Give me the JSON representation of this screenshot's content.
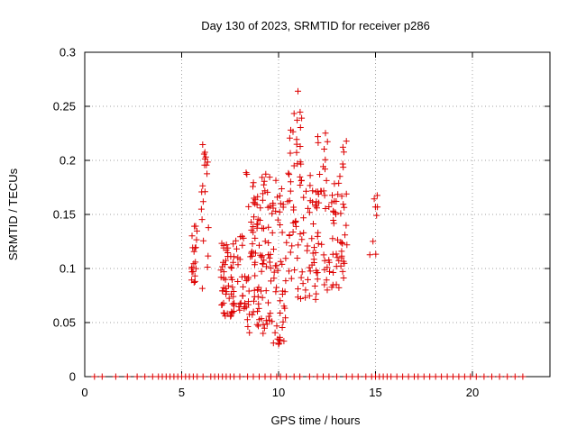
{
  "chart_data": {
    "type": "scatter",
    "title": "Day 130 of 2023, SRMTID for receiver p286",
    "xlabel": "GPS time / hours",
    "ylabel": "SRMTID / TECUs",
    "xlim": [
      0,
      24
    ],
    "ylim": [
      0,
      0.3
    ],
    "xticks": [
      0,
      5,
      10,
      15,
      20
    ],
    "yticks": [
      0,
      0.05,
      0.1,
      0.15,
      0.2,
      0.25,
      0.3
    ],
    "xtick_labels": [
      "0",
      "5",
      "10",
      "15",
      "20"
    ],
    "ytick_labels": [
      "0",
      "0.05",
      "0.1",
      "0.15",
      "0.2",
      "0.25",
      "0.3"
    ],
    "grid": true,
    "marker": "+",
    "color": "#dd0000",
    "clusters": [
      {
        "x": [
          5.5,
          5.8
        ],
        "y": [
          0.08,
          0.14
        ],
        "n": 20
      },
      {
        "x": [
          6.0,
          6.4
        ],
        "y": [
          0.07,
          0.215
        ],
        "n": 20
      },
      {
        "x": [
          7.0,
          7.6
        ],
        "y": [
          0.055,
          0.125
        ],
        "n": 40
      },
      {
        "x": [
          7.6,
          8.3
        ],
        "y": [
          0.05,
          0.13
        ],
        "n": 35
      },
      {
        "x": [
          8.3,
          8.9
        ],
        "y": [
          0.04,
          0.19
        ],
        "n": 45
      },
      {
        "x": [
          8.9,
          9.6
        ],
        "y": [
          0.04,
          0.19
        ],
        "n": 55
      },
      {
        "x": [
          9.6,
          10.4
        ],
        "y": [
          0.03,
          0.185
        ],
        "n": 50
      },
      {
        "x": [
          10.4,
          11.2
        ],
        "y": [
          0.07,
          0.245
        ],
        "n": 50
      },
      {
        "x": [
          11.2,
          12.0
        ],
        "y": [
          0.07,
          0.19
        ],
        "n": 40
      },
      {
        "x": [
          12.0,
          12.7
        ],
        "y": [
          0.08,
          0.235
        ],
        "n": 35
      },
      {
        "x": [
          12.7,
          13.3
        ],
        "y": [
          0.08,
          0.19
        ],
        "n": 35
      },
      {
        "x": [
          13.3,
          13.6
        ],
        "y": [
          0.08,
          0.23
        ],
        "n": 15
      },
      {
        "x": [
          14.7,
          15.1
        ],
        "y": [
          0.11,
          0.17
        ],
        "n": 8
      }
    ],
    "extra_points": [
      {
        "x": 11.0,
        "y": 0.264
      },
      {
        "x": 9.2,
        "y": 0.04
      },
      {
        "x": 10.0,
        "y": 0.03
      }
    ],
    "zero_points": {
      "x": [
        0.5,
        0.9,
        1.6,
        2.2,
        2.7,
        3.1,
        3.5,
        3.8,
        4.0,
        4.2,
        4.4,
        4.6,
        4.8,
        5.0,
        5.2,
        5.4,
        5.6,
        5.8,
        6.1,
        6.5,
        6.7,
        6.9,
        7.1,
        7.3,
        7.5,
        7.7,
        8.0,
        8.4,
        8.7,
        9.0,
        9.3,
        9.6,
        9.9,
        10.1,
        10.4,
        10.8,
        11.1,
        11.6,
        12.0,
        12.3,
        12.6,
        13.0,
        13.5,
        13.8,
        14.1,
        14.5,
        14.8,
        15.0,
        15.2,
        15.4,
        15.6,
        15.8,
        16.1,
        16.4,
        16.7,
        17.0,
        17.2,
        17.5,
        17.8,
        18.1,
        18.4,
        18.7,
        19.0,
        19.3,
        19.6,
        19.9,
        20.2,
        20.6,
        21.0,
        21.4,
        21.8,
        22.2,
        22.6
      ],
      "y": 0
    }
  }
}
